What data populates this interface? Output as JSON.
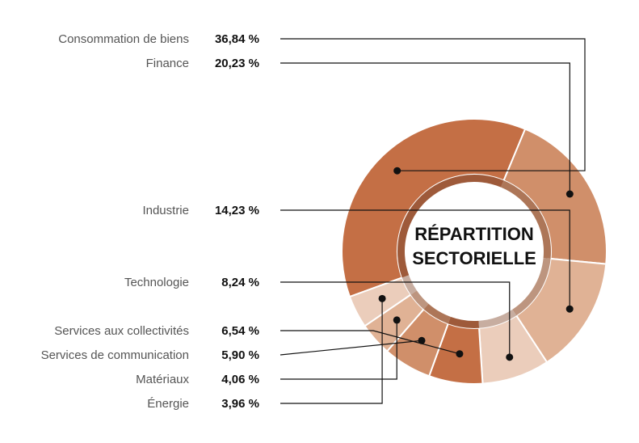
{
  "chart_data": {
    "type": "pie",
    "style": "donut",
    "title_lines": [
      "RÉPARTITION",
      "SECTORIELLE"
    ],
    "categories": [
      "Consommation de biens",
      "Finance",
      "Industrie",
      "Technologie",
      "Services aux collectivités",
      "Services de communication",
      "Matériaux",
      "Énergie"
    ],
    "values": [
      36.84,
      20.23,
      14.23,
      8.24,
      6.54,
      5.9,
      4.06,
      3.96
    ],
    "value_labels": [
      "36,84 %",
      "20,23 %",
      "14,23 %",
      "8,24 %",
      "6,54 %",
      "5,90 %",
      "4,06 %",
      "3,96 %"
    ],
    "colors": [
      "#c46f45",
      "#d08f6a",
      "#e0b295",
      "#ebcdbb",
      "#c46f45",
      "#d08f6a",
      "#e0b295",
      "#ebcdbb"
    ],
    "inner_colors": [
      "#9e5a3a",
      "#ad7658",
      "#bd957f",
      "#c7ada0",
      "#9e5a3a",
      "#ad7658",
      "#bd957f",
      "#c7ada0"
    ],
    "legend": "left"
  }
}
